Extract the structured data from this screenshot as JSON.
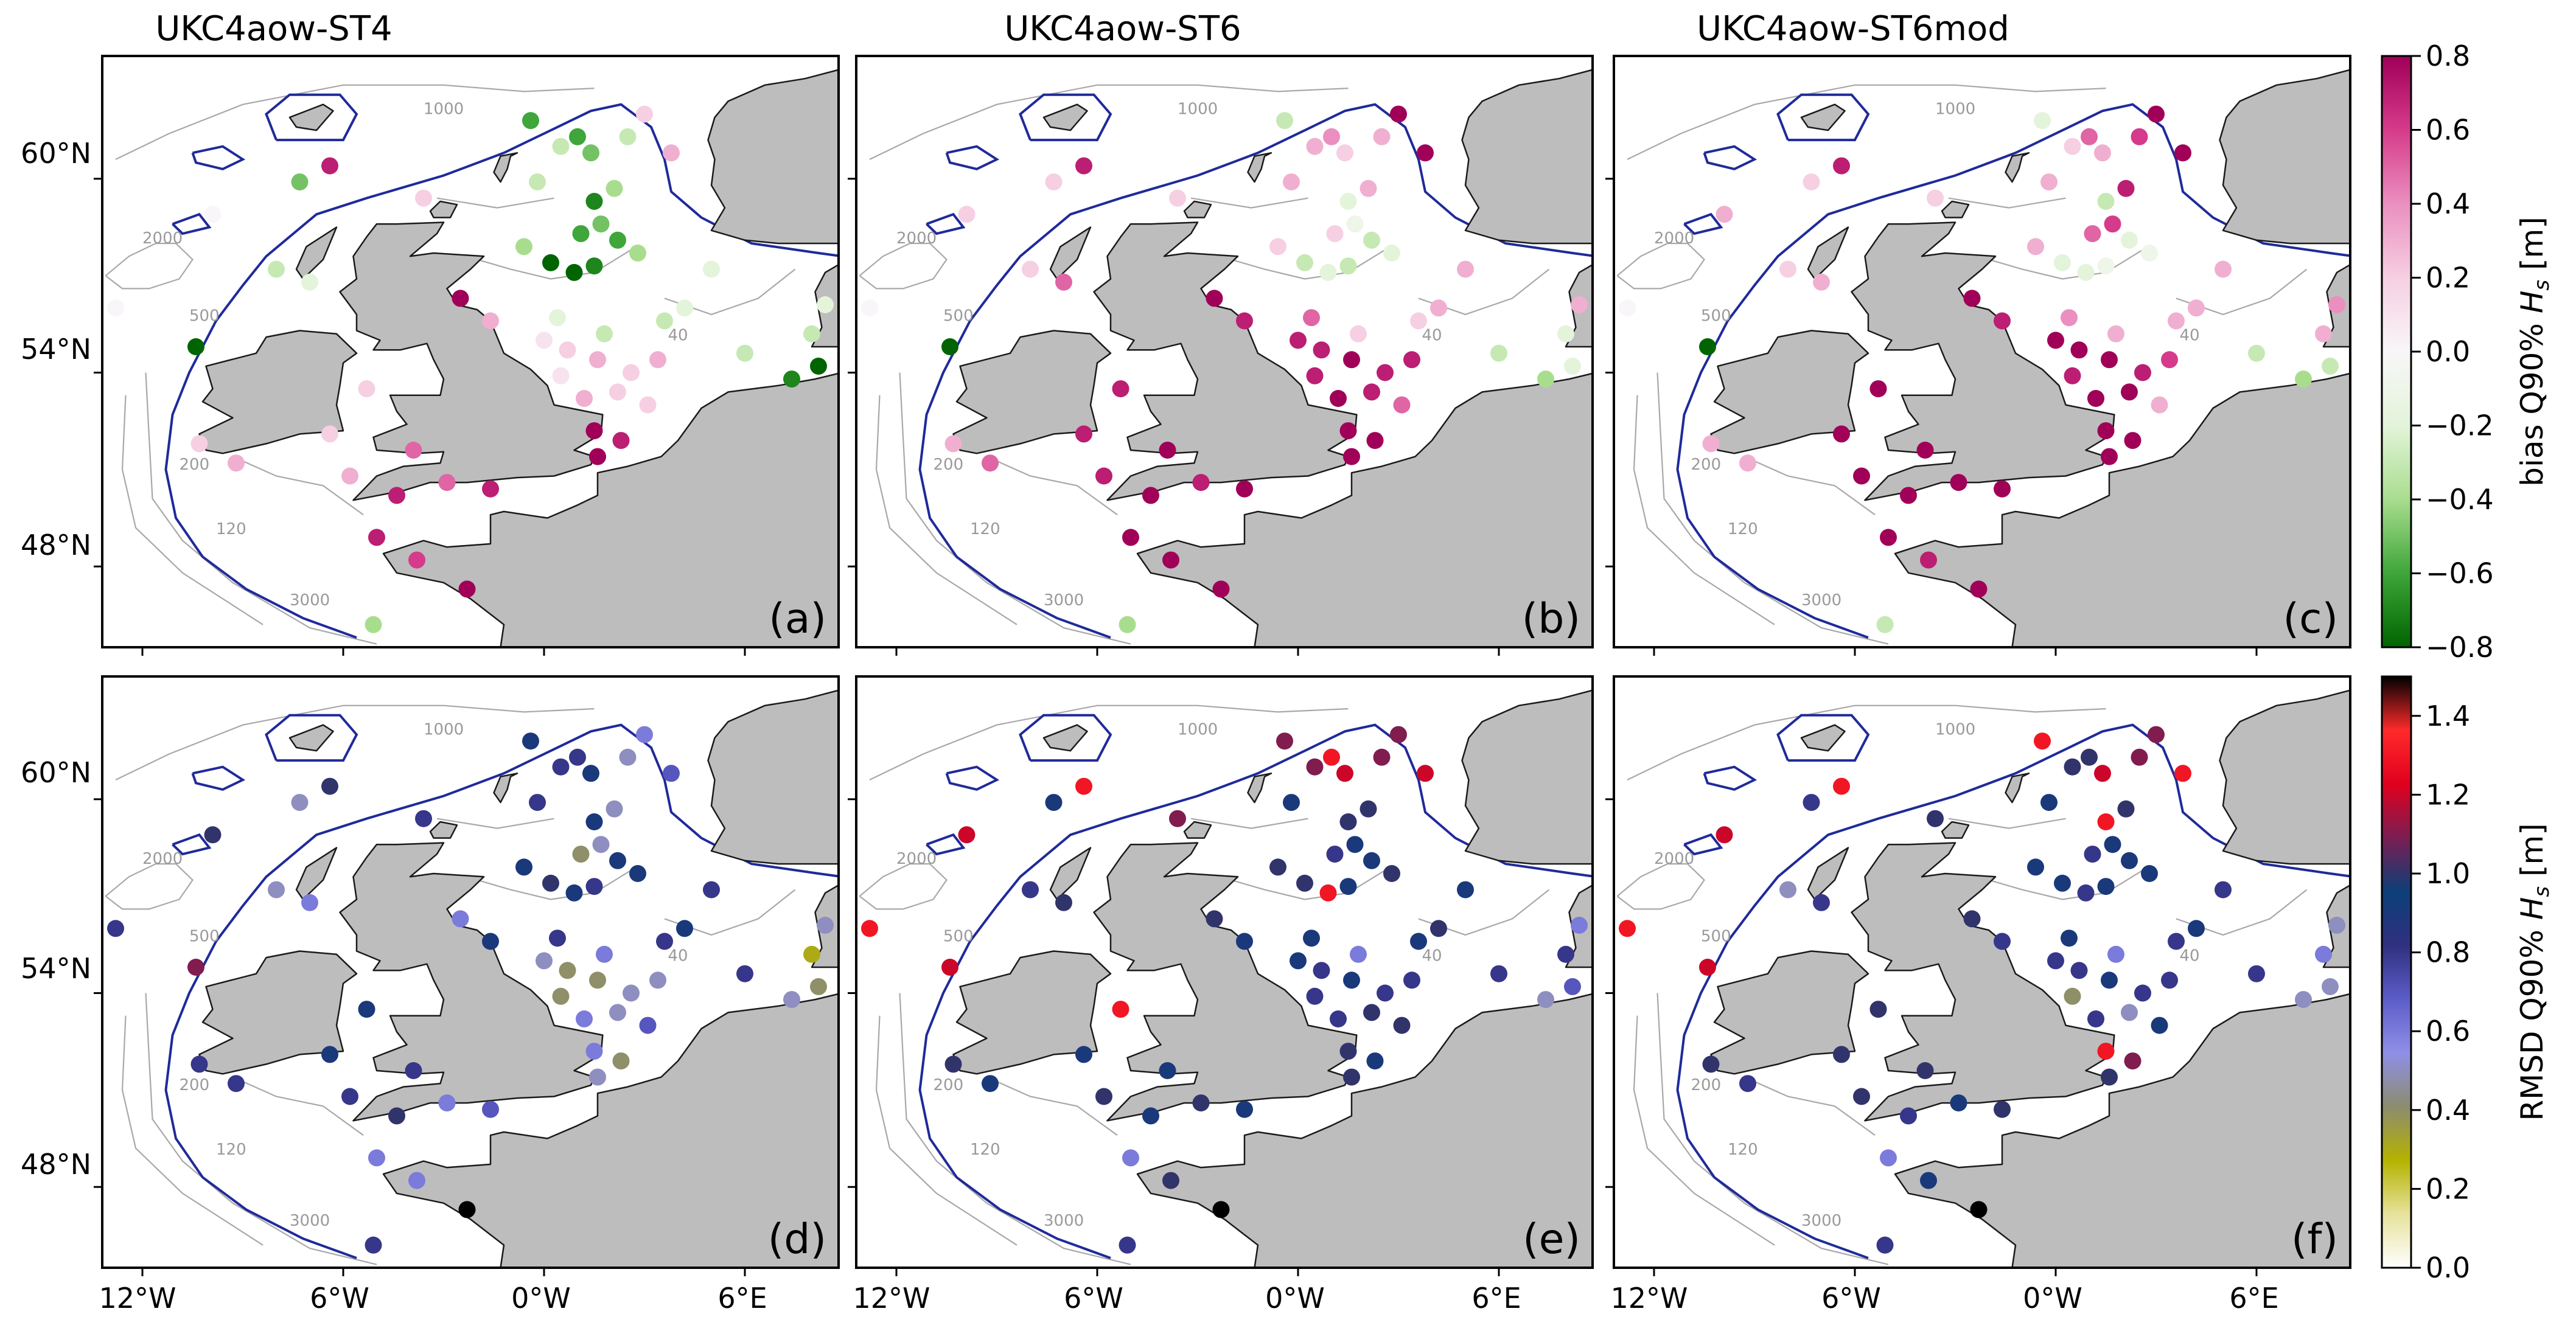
{
  "columns": [
    {
      "title": "UKC4aow-ST4"
    },
    {
      "title": "UKC4aow-ST6"
    },
    {
      "title": "UKC4aow-ST6mod"
    }
  ],
  "rows": [
    {
      "metric": "bias",
      "labels": [
        "(a)",
        "(b)",
        "(c)"
      ]
    },
    {
      "metric": "rmsd",
      "labels": [
        "(d)",
        "(e)",
        "(f)"
      ]
    }
  ],
  "axes": {
    "lon_ticks": [
      "12°W",
      "6°W",
      "0°W",
      "6°E"
    ],
    "lat_ticks": [
      "60°N",
      "54°N",
      "48°N"
    ]
  },
  "contour_labels": [
    "1000",
    "2000",
    "500",
    "200",
    "120",
    "40",
    "3000"
  ],
  "colorbars": {
    "bias": {
      "label_prefix": "bias Q90% ",
      "label_var": "H",
      "label_sub": "s",
      "label_unit": " [m]",
      "ticks": [
        "0.8",
        "0.6",
        "0.4",
        "0.2",
        "0.0",
        "−0.2",
        "−0.4",
        "−0.6",
        "−0.8"
      ],
      "range": [
        -0.8,
        0.8
      ],
      "colors": [
        "#006400",
        "#3ea63a",
        "#a9dd8e",
        "#e3f4da",
        "#f8f6f8",
        "#f6cfe2",
        "#ea8fbf",
        "#d63b8b",
        "#a00058"
      ]
    },
    "rmsd": {
      "label_prefix": "RMSD Q90% ",
      "label_var": "H",
      "label_sub": "s",
      "label_unit": " [m]",
      "ticks": [
        "1.4",
        "1.2",
        "1.0",
        "0.8",
        "0.6",
        "0.4",
        "0.2",
        "0.0"
      ],
      "range": [
        0.0,
        1.5
      ],
      "colors": [
        "#ffffff",
        "#e6e29b",
        "#b5b200",
        "#8c8c70",
        "#8f8fe8",
        "#5c5cc8",
        "#303080",
        "#0c3f78",
        "#7a1e52",
        "#e0001e",
        "#ff2a2a",
        "#000000"
      ]
    }
  },
  "colors": {
    "land": "#bdbdbd",
    "coast": "#1a1a1a",
    "shelf_contour": "#1f2a9a",
    "bathymetry": "#a8a8a8"
  },
  "stations": [
    [
      -12.8,
      56.0
    ],
    [
      -10.4,
      54.8
    ],
    [
      -9.9,
      58.9
    ],
    [
      -8.0,
      57.2
    ],
    [
      -7.0,
      56.8
    ],
    [
      -7.3,
      59.9
    ],
    [
      -6.4,
      60.4
    ],
    [
      -3.6,
      59.4
    ],
    [
      -4.4,
      50.2
    ],
    [
      -5.8,
      50.8
    ],
    [
      -6.4,
      52.1
    ],
    [
      -5.3,
      53.5
    ],
    [
      -5.0,
      48.9
    ],
    [
      -5.1,
      46.2
    ],
    [
      -3.9,
      51.6
    ],
    [
      -2.9,
      50.6
    ],
    [
      -1.6,
      50.4
    ],
    [
      -2.3,
      47.3
    ],
    [
      -3.8,
      48.2
    ],
    [
      -9.2,
      51.2
    ],
    [
      -10.3,
      51.8
    ],
    [
      0.2,
      57.4
    ],
    [
      0.9,
      57.1
    ],
    [
      1.5,
      57.3
    ],
    [
      1.1,
      58.3
    ],
    [
      1.7,
      58.6
    ],
    [
      2.1,
      59.7
    ],
    [
      2.5,
      61.3
    ],
    [
      1.4,
      60.8
    ],
    [
      1.0,
      61.3
    ],
    [
      0.5,
      61.0
    ],
    [
      1.5,
      59.3
    ],
    [
      2.2,
      58.1
    ],
    [
      2.8,
      57.7
    ],
    [
      0.0,
      55.0
    ],
    [
      0.7,
      54.7
    ],
    [
      1.6,
      54.4
    ],
    [
      2.2,
      53.4
    ],
    [
      1.2,
      53.2
    ],
    [
      0.5,
      53.9
    ],
    [
      1.8,
      55.2
    ],
    [
      2.6,
      54.0
    ],
    [
      1.5,
      52.2
    ],
    [
      2.3,
      51.9
    ],
    [
      1.6,
      51.4
    ],
    [
      3.1,
      53.0
    ],
    [
      3.6,
      55.6
    ],
    [
      4.2,
      56.0
    ],
    [
      5.0,
      57.2
    ],
    [
      7.4,
      53.8
    ],
    [
      8.2,
      54.2
    ],
    [
      8.0,
      55.2
    ],
    [
      8.4,
      56.1
    ],
    [
      6.0,
      54.6
    ],
    [
      3.8,
      60.8
    ],
    [
      3.0,
      62.0
    ],
    [
      -0.6,
      57.9
    ],
    [
      -1.6,
      55.6
    ],
    [
      -2.5,
      56.3
    ],
    [
      -0.4,
      61.8
    ],
    [
      -0.2,
      59.9
    ],
    [
      0.4,
      55.7
    ],
    [
      3.4,
      54.4
    ]
  ],
  "bias_values": [
    [
      0.0,
      -1.0,
      0.0,
      -0.3,
      -0.2,
      -0.5,
      0.7,
      0.2,
      0.7,
      0.3,
      0.2,
      0.2,
      0.7,
      -0.4,
      0.5,
      0.5,
      0.7,
      0.8,
      0.6,
      0.3,
      0.2,
      -0.8,
      -0.8,
      -0.7,
      -0.6,
      -0.5,
      -0.4,
      -0.3,
      -0.5,
      -0.6,
      -0.3,
      -0.7,
      -0.6,
      -0.4,
      0.1,
      0.2,
      0.3,
      0.2,
      0.3,
      0.1,
      -0.3,
      0.2,
      0.8,
      0.7,
      0.8,
      0.2,
      -0.3,
      -0.2,
      -0.2,
      -0.7,
      -0.8,
      -0.3,
      -0.2,
      -0.3,
      0.3,
      0.2,
      -0.4,
      0.3,
      0.8,
      -0.6,
      -0.3,
      -0.2,
      0.3
    ],
    [
      0.0,
      -1.0,
      0.2,
      0.2,
      0.5,
      0.2,
      0.7,
      0.2,
      0.8,
      0.7,
      0.7,
      0.7,
      0.8,
      -0.4,
      0.8,
      0.7,
      0.8,
      0.8,
      0.8,
      0.5,
      0.3,
      -0.3,
      -0.2,
      -0.3,
      0.2,
      -0.1,
      0.3,
      0.3,
      0.2,
      0.4,
      0.3,
      -0.2,
      -0.3,
      -0.2,
      0.7,
      0.7,
      0.8,
      0.7,
      0.8,
      0.7,
      0.2,
      0.7,
      0.8,
      0.8,
      0.8,
      0.5,
      0.2,
      0.3,
      0.3,
      -0.4,
      -0.2,
      -0.2,
      0.3,
      -0.3,
      0.8,
      0.8,
      0.2,
      0.7,
      0.8,
      -0.3,
      0.3,
      0.5,
      0.7
    ],
    [
      0.0,
      -1.0,
      0.3,
      0.2,
      0.3,
      0.2,
      0.7,
      0.2,
      0.8,
      0.8,
      0.8,
      0.8,
      0.8,
      -0.3,
      0.8,
      0.8,
      0.8,
      0.8,
      0.7,
      0.3,
      0.3,
      -0.2,
      -0.2,
      -0.1,
      0.5,
      0.6,
      0.7,
      0.6,
      0.3,
      0.5,
      0.2,
      -0.3,
      -0.2,
      -0.1,
      0.8,
      0.8,
      0.8,
      0.8,
      0.8,
      0.7,
      0.3,
      0.7,
      0.8,
      0.8,
      0.8,
      0.3,
      0.3,
      0.3,
      0.3,
      -0.4,
      -0.3,
      0.3,
      0.4,
      -0.3,
      0.8,
      0.8,
      0.3,
      0.7,
      0.8,
      -0.2,
      0.3,
      0.4,
      0.6
    ]
  ],
  "rmsd_values": [
    [
      0.8,
      1.1,
      1.0,
      0.5,
      0.6,
      0.5,
      1.0,
      0.8,
      1.0,
      0.8,
      0.9,
      0.9,
      0.6,
      0.8,
      0.8,
      0.6,
      0.7,
      1.5,
      0.6,
      0.8,
      0.8,
      1.0,
      0.9,
      0.8,
      0.4,
      0.5,
      0.5,
      0.5,
      0.9,
      0.8,
      0.8,
      0.9,
      0.9,
      0.9,
      0.5,
      0.4,
      0.4,
      0.5,
      0.6,
      0.4,
      0.6,
      0.5,
      0.6,
      0.4,
      0.5,
      0.7,
      0.8,
      0.9,
      0.8,
      0.5,
      0.4,
      0.3,
      0.5,
      0.8,
      0.7,
      0.6,
      0.9,
      0.9,
      0.6,
      0.9,
      0.8,
      0.8,
      0.5
    ],
    [
      1.3,
      1.2,
      1.2,
      0.8,
      1.0,
      0.9,
      1.3,
      1.1,
      0.9,
      1.0,
      0.9,
      1.3,
      0.6,
      0.8,
      0.9,
      1.0,
      0.9,
      1.5,
      1.0,
      0.9,
      1.0,
      1.0,
      1.3,
      0.9,
      0.8,
      0.9,
      1.0,
      1.1,
      1.2,
      1.3,
      1.1,
      1.0,
      0.9,
      1.0,
      0.9,
      0.8,
      0.9,
      1.0,
      0.8,
      0.8,
      0.6,
      0.8,
      1.0,
      0.9,
      1.0,
      1.0,
      0.9,
      1.0,
      0.9,
      0.5,
      0.7,
      0.8,
      0.6,
      0.8,
      1.2,
      1.1,
      1.0,
      0.9,
      1.0,
      1.1,
      0.9,
      0.9,
      0.8
    ],
    [
      1.3,
      1.2,
      1.2,
      0.5,
      0.8,
      0.8,
      1.3,
      1.0,
      0.8,
      1.0,
      1.0,
      1.0,
      0.6,
      0.8,
      1.0,
      0.9,
      1.0,
      1.5,
      0.9,
      0.8,
      1.0,
      0.9,
      0.8,
      0.9,
      0.8,
      0.9,
      1.0,
      1.1,
      1.2,
      1.0,
      1.0,
      1.3,
      0.9,
      0.9,
      0.8,
      0.8,
      0.9,
      0.5,
      0.8,
      0.4,
      0.6,
      0.8,
      1.3,
      1.1,
      1.0,
      0.9,
      0.8,
      0.9,
      0.8,
      0.5,
      0.5,
      0.6,
      0.5,
      0.8,
      1.3,
      1.1,
      0.9,
      0.8,
      1.0,
      1.3,
      0.9,
      0.9,
      0.8
    ]
  ]
}
